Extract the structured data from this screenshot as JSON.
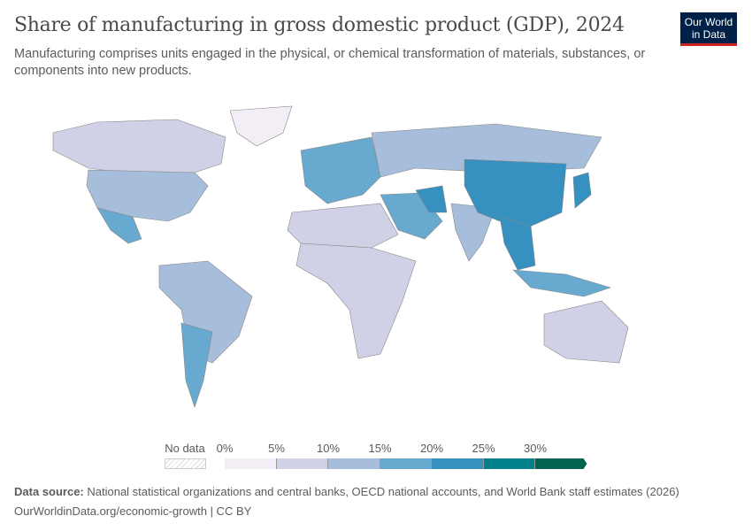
{
  "header": {
    "title": "Share of manufacturing in gross domestic product (GDP), 2024",
    "subtitle": "Manufacturing comprises units engaged in the physical, or chemical transformation of materials, substances, or components into new products.",
    "logo_text": "Our World in Data"
  },
  "legend": {
    "no_data_label": "No data",
    "ticks": [
      "0%",
      "5%",
      "10%",
      "15%",
      "20%",
      "25%",
      "30%"
    ],
    "bins": [
      {
        "min": 0,
        "max": 5,
        "color": "#f3eef6"
      },
      {
        "min": 5,
        "max": 10,
        "color": "#d0d1e6"
      },
      {
        "min": 10,
        "max": 15,
        "color": "#a6bddb"
      },
      {
        "min": 15,
        "max": 20,
        "color": "#67a9cf"
      },
      {
        "min": 20,
        "max": 25,
        "color": "#3690c0"
      },
      {
        "min": 25,
        "max": 30,
        "color": "#02818a"
      },
      {
        "min": 30,
        "max": null,
        "color": "#016450"
      }
    ]
  },
  "map_regions": [
    {
      "name": "Canada",
      "bin": 1
    },
    {
      "name": "United States",
      "bin": 2
    },
    {
      "name": "Mexico",
      "bin": 3
    },
    {
      "name": "South America",
      "bin": 2
    },
    {
      "name": "Argentina",
      "bin": 3
    },
    {
      "name": "Greenland",
      "bin": 0
    },
    {
      "name": "Europe",
      "bin": 3
    },
    {
      "name": "Russia",
      "bin": 2
    },
    {
      "name": "North Africa",
      "bin": 1
    },
    {
      "name": "Sub-Saharan Africa",
      "bin": 1
    },
    {
      "name": "Middle East",
      "bin": 3
    },
    {
      "name": "India",
      "bin": 2
    },
    {
      "name": "China",
      "bin": 4
    },
    {
      "name": "Southeast Asia",
      "bin": 4
    },
    {
      "name": "Japan",
      "bin": 4
    },
    {
      "name": "Australia",
      "bin": 1
    },
    {
      "name": "Iran",
      "bin": 4
    },
    {
      "name": "Indonesia",
      "bin": 3
    }
  ],
  "footer": {
    "source_label": "Data source:",
    "source_text": "National statistical organizations and central banks, OECD national accounts, and World Bank staff estimates (2026)",
    "url_text": "OurWorldinData.org/economic-growth | CC BY"
  }
}
